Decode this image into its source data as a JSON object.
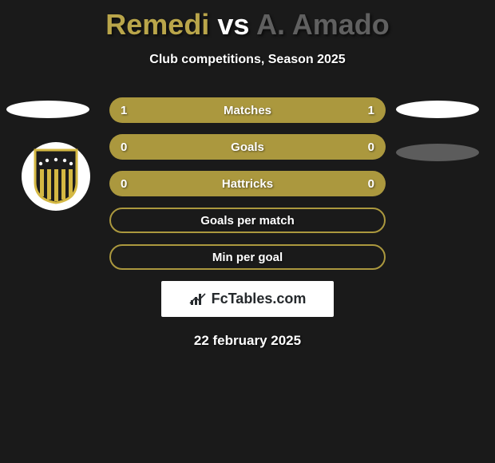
{
  "header": {
    "player1": "Remedi",
    "vs": "vs",
    "player2": "A. Amado",
    "subtitle": "Club competitions, Season 2025"
  },
  "colors": {
    "bar_fill": "#ab983e",
    "bar_border": "#ab983e",
    "background": "#1a1a1a",
    "player1_color": "#b9a54a",
    "player2_color": "#606060",
    "text_color": "#ffffff"
  },
  "bars": [
    {
      "left": "1",
      "label": "Matches",
      "right": "1",
      "filled": true
    },
    {
      "left": "0",
      "label": "Goals",
      "right": "0",
      "filled": true
    },
    {
      "left": "0",
      "label": "Hattricks",
      "right": "0",
      "filled": true
    },
    {
      "left": "",
      "label": "Goals per match",
      "right": "",
      "filled": false
    },
    {
      "left": "",
      "label": "Min per goal",
      "right": "",
      "filled": false
    }
  ],
  "brand": {
    "text": "FcTables.com",
    "icon": "bar-chart-icon"
  },
  "date": "22 february 2025",
  "crest": {
    "name": "penarol-crest",
    "shield_fill": "#1c1c1c",
    "shield_stroke": "#d4b843",
    "stripes": "#d4b843"
  }
}
